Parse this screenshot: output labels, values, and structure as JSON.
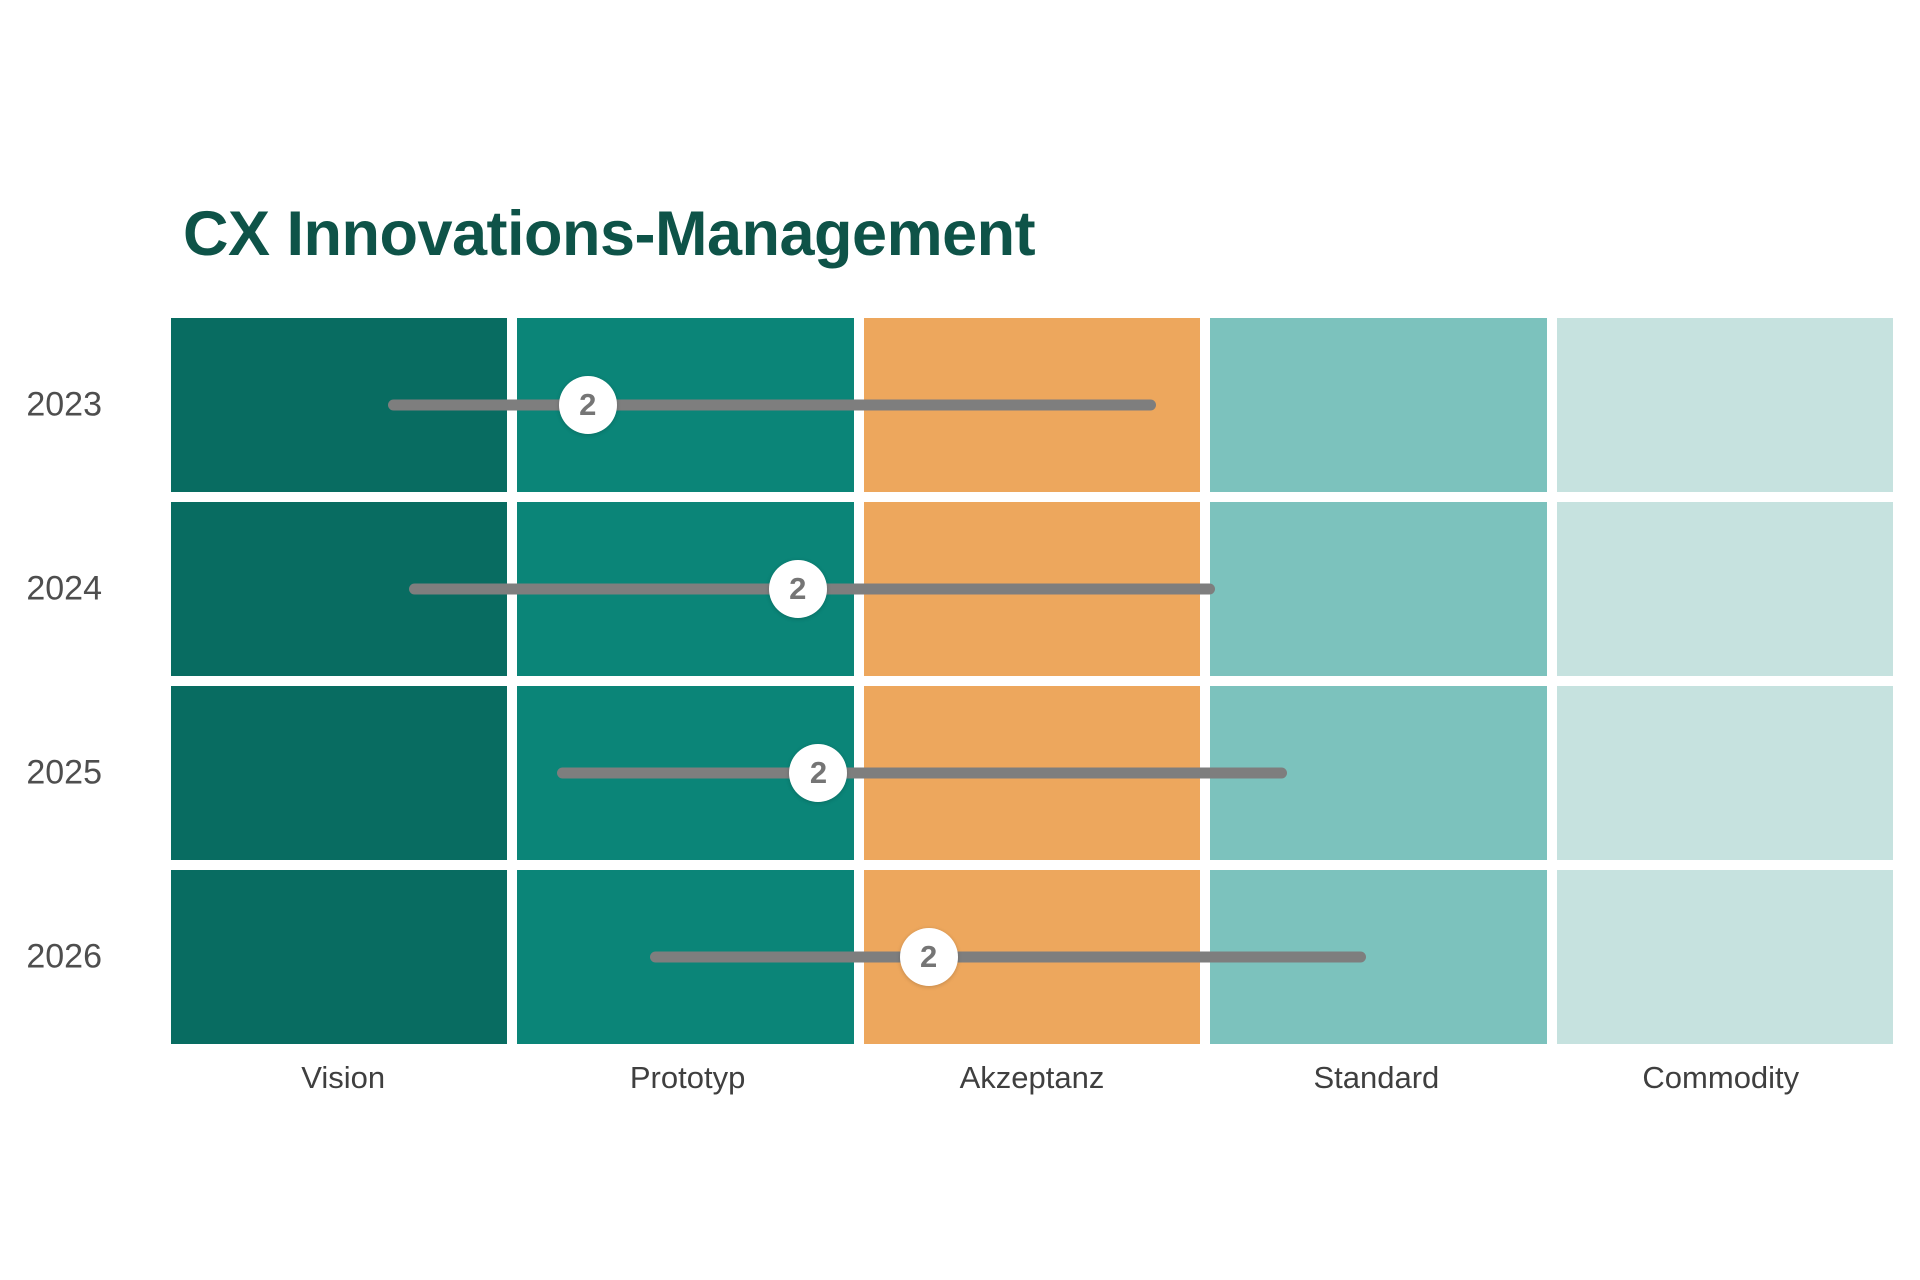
{
  "page": {
    "background": "#ffffff"
  },
  "chart_data": {
    "type": "heatmap",
    "title": "CX Innovations-Management",
    "title_color": "#0e5348",
    "rows": [
      "2023",
      "2024",
      "2025",
      "2026"
    ],
    "columns": [
      "Vision",
      "Prototyp",
      "Akzeptanz",
      "Standard",
      "Commodity"
    ],
    "column_colors": [
      "#086c61",
      "#0b8578",
      "#eda75d",
      "#7cc2bd",
      "#c6e2df"
    ],
    "x_units": "phase index: 0 = left edge of Vision column, 5 = right edge of Commodity column",
    "bars": [
      {
        "row": "2023",
        "start": 0.63,
        "badge": 1.21,
        "end": 2.86,
        "label": "2"
      },
      {
        "row": "2024",
        "start": 0.69,
        "badge": 1.82,
        "end": 3.03,
        "label": "2"
      },
      {
        "row": "2025",
        "start": 1.12,
        "badge": 1.88,
        "end": 3.24,
        "label": "2"
      },
      {
        "row": "2026",
        "start": 1.39,
        "badge": 2.2,
        "end": 3.47,
        "label": "2"
      }
    ],
    "bar_color": "#7e7e7e",
    "badge_bg": "#ffffff",
    "badge_text_color": "#757575",
    "legend_position": "none",
    "grid_gap_color": "#ffffff"
  }
}
